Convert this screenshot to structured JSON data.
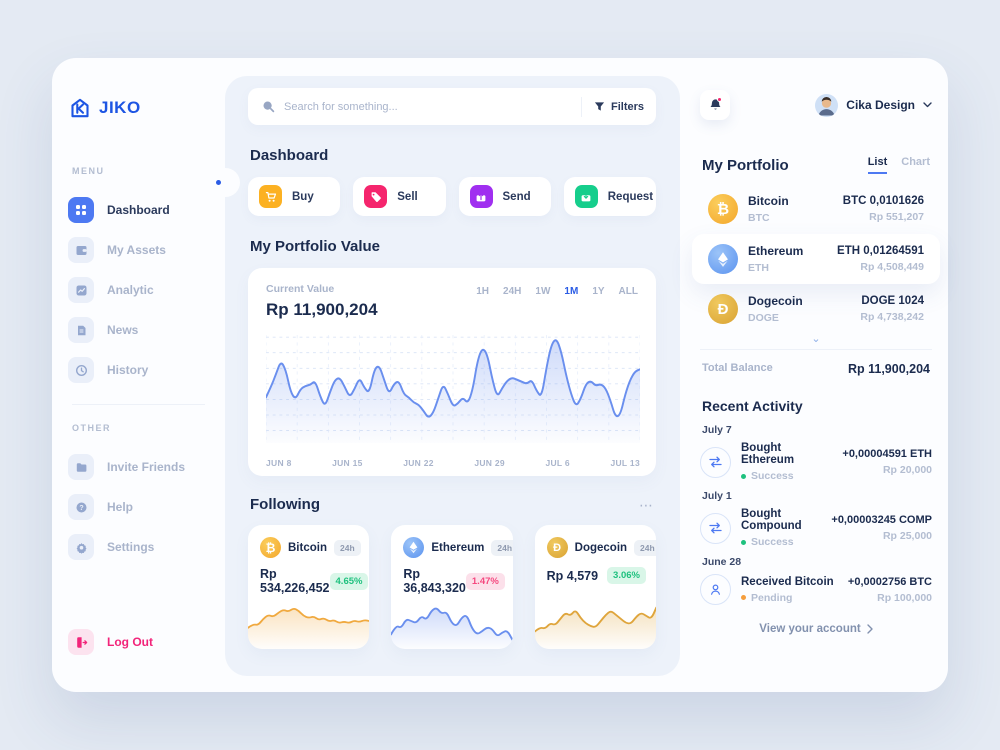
{
  "colors": {
    "accent": "#2A5CE5",
    "positive": "#1EC17E",
    "negative": "#F5487F",
    "warning": "#F59E3D",
    "logout": "#F2247A",
    "buy": "#FCB122",
    "sell": "#F5256D",
    "send": "#A02FF0",
    "request": "#16CE8C"
  },
  "icons": {
    "more": "⋯",
    "expand": "⌄",
    "btc": "₿",
    "eth": "⬨",
    "doge": "Ð"
  },
  "brand": {
    "name": "JIKO"
  },
  "sidebar": {
    "menu_label": "MENU",
    "other_label": "OTHER",
    "items": [
      {
        "label": "Dashboard"
      },
      {
        "label": "My Assets"
      },
      {
        "label": "Analytic"
      },
      {
        "label": "News"
      },
      {
        "label": "History"
      }
    ],
    "other_items": [
      {
        "label": "Invite Friends"
      },
      {
        "label": "Help"
      },
      {
        "label": "Settings"
      }
    ],
    "logout_label": "Log Out"
  },
  "header": {
    "search_placeholder": "Search for something...",
    "filters_label": "Filters",
    "user_name": "Cika Design"
  },
  "dashboard": {
    "title": "Dashboard",
    "actions": [
      {
        "label": "Buy"
      },
      {
        "label": "Sell"
      },
      {
        "label": "Send"
      },
      {
        "label": "Request"
      }
    ]
  },
  "portfolio_value": {
    "title": "My Portfolio Value",
    "current_value_label": "Current Value",
    "current_value": "Rp 11,900,204",
    "ranges": [
      "1H",
      "24H",
      "1W",
      "1M",
      "1Y",
      "ALL"
    ],
    "active_range": "1M"
  },
  "following": {
    "title": "Following",
    "cards": [
      {
        "name": "Bitcoin",
        "period": "24h",
        "value": "Rp 534,226,452",
        "change": "4.65%",
        "direction": "up"
      },
      {
        "name": "Ethereum",
        "period": "24h",
        "value": "Rp 36,843,320",
        "change": "1.47%",
        "direction": "down"
      },
      {
        "name": "Dogecoin",
        "period": "24h",
        "value": "Rp 4,579",
        "change": "3.06%",
        "direction": "up"
      }
    ]
  },
  "portfolio": {
    "title": "My Portfolio",
    "tabs": [
      {
        "label": "List",
        "active": true
      },
      {
        "label": "Chart",
        "active": false
      }
    ],
    "coins": [
      {
        "name": "Bitcoin",
        "symbol": "BTC",
        "amount": "BTC 0,0101626",
        "rp": "Rp 551,207"
      },
      {
        "name": "Ethereum",
        "symbol": "ETH",
        "amount": "ETH 0,01264591",
        "rp": "Rp 4,508,449"
      },
      {
        "name": "Dogecoin",
        "symbol": "DOGE",
        "amount": "DOGE 1024",
        "rp": "Rp 4,738,242"
      }
    ],
    "total_label": "Total Balance",
    "total_value": "Rp 11,900,204"
  },
  "activity": {
    "title": "Recent Activity",
    "groups": [
      {
        "date": "July 7",
        "name": "Bought Ethereum",
        "status": "Success",
        "amount": "+0,00004591 ETH",
        "rp": "Rp 20,000",
        "icon": "swap"
      },
      {
        "date": "July 1",
        "name": "Bought Compound",
        "status": "Success",
        "amount": "+0,00003245 COMP",
        "rp": "Rp 25,000",
        "icon": "swap"
      },
      {
        "date": "June 28",
        "name": "Received Bitcoin",
        "status": "Pending",
        "amount": "+0,0002756 BTC",
        "rp": "Rp 100,000",
        "icon": "person"
      }
    ],
    "link_label": "View your account"
  },
  "chart_data": [
    {
      "type": "area",
      "title": "My Portfolio Value (1M)",
      "grid": true,
      "color": "#6A8FEE",
      "x_labels": [
        "JUN 8",
        "JUN 15",
        "JUN 22",
        "JUN 29",
        "JUL 6",
        "JUL 13"
      ],
      "values": [
        41,
        51,
        63,
        76,
        68,
        46,
        39,
        49,
        52,
        53,
        57,
        42,
        32,
        46,
        58,
        60,
        51,
        41,
        49,
        60,
        50,
        45,
        68,
        72,
        58,
        44,
        54,
        57,
        44,
        41,
        36,
        34,
        28,
        21,
        26,
        40,
        54,
        44,
        32,
        35,
        41,
        35,
        48,
        77,
        89,
        82,
        58,
        41,
        50,
        57,
        60,
        58,
        56,
        54,
        58,
        47,
        41,
        70,
        92,
        98,
        85,
        62,
        44,
        32,
        40,
        54,
        57,
        52,
        54,
        50,
        38,
        22,
        24,
        44,
        58,
        66,
        68
      ]
    },
    {
      "type": "area",
      "title": "Bitcoin 24h sparkline",
      "grid": false,
      "color": "#F0A93F",
      "values": [
        35,
        42,
        40,
        52,
        60,
        56,
        64,
        70,
        66,
        73,
        68,
        58,
        54,
        57,
        50,
        54,
        47,
        50,
        44,
        47,
        44,
        49,
        46,
        50,
        48
      ]
    },
    {
      "type": "area",
      "title": "Ethereum 24h sparkline",
      "grid": false,
      "color": "#6A8FEE",
      "values": [
        22,
        40,
        34,
        52,
        48,
        44,
        58,
        50,
        68,
        74,
        62,
        66,
        44,
        38,
        55,
        60,
        34,
        22,
        28,
        36,
        33,
        18,
        26,
        30,
        12
      ]
    },
    {
      "type": "area",
      "title": "Dogecoin 24h sparkline",
      "grid": false,
      "color": "#DFA53C",
      "values": [
        28,
        36,
        33,
        44,
        40,
        52,
        64,
        58,
        70,
        54,
        44,
        38,
        36,
        48,
        60,
        68,
        60,
        52,
        44,
        43,
        56,
        64,
        58,
        52,
        74
      ]
    }
  ]
}
